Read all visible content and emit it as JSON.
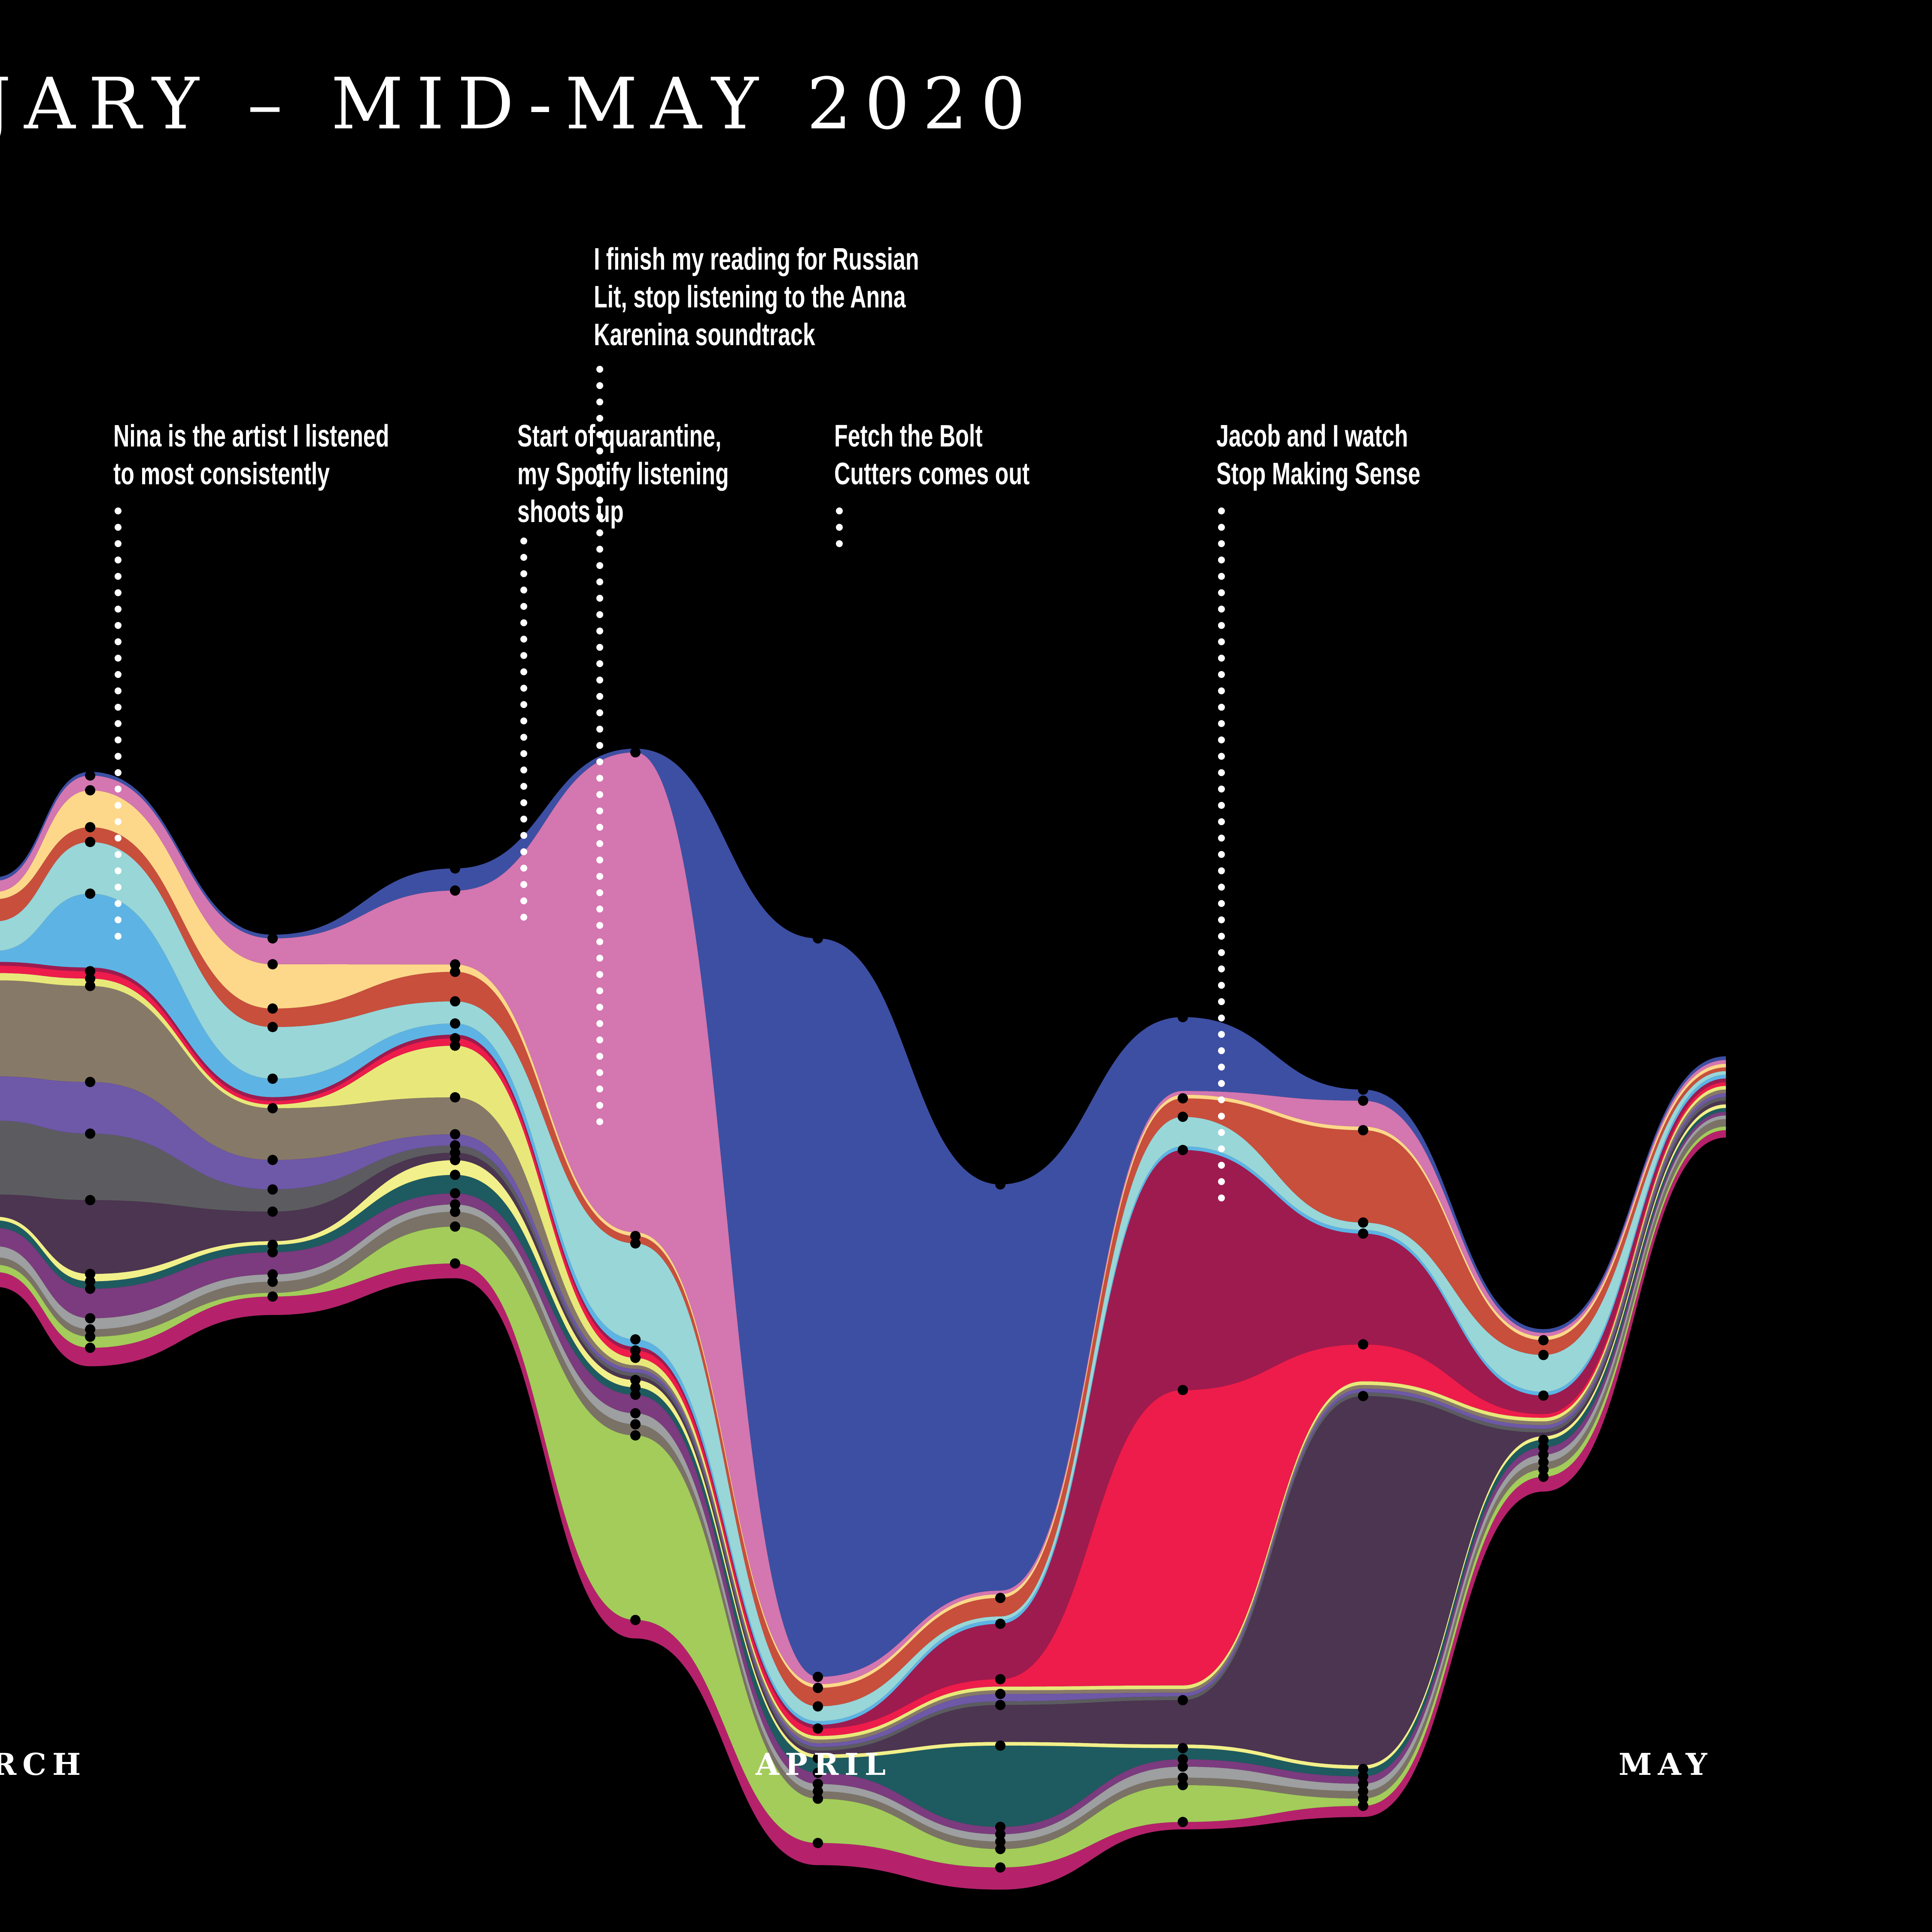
{
  "title": "JARY – MID-MAY 2020",
  "annotations": [
    {
      "text": "Nina is the artist I listened\nto most consistently"
    },
    {
      "text": "Start of quarantine,\nmy Spotify listening\nshoots up"
    },
    {
      "text": "I finish my reading for Russian\nLit, stop listening to the Anna\nKarenina soundtrack"
    },
    {
      "text": "Fetch the Bolt\nCutters comes out"
    },
    {
      "text": "Jacob and I watch\nStop Making Sense"
    }
  ],
  "months": [
    "RCH",
    "APRIL",
    "MAY"
  ],
  "chart_data": {
    "type": "area",
    "subtype": "streamgraph",
    "x": [
      "P0",
      "P1",
      "P2",
      "P3",
      "P4",
      "P5",
      "P6",
      "P7",
      "P8",
      "P9",
      "P10"
    ],
    "x_tick_labels": [
      "RCH",
      "APRIL",
      "MAY"
    ],
    "grid": false,
    "legend": "none",
    "series": [
      {
        "color": "#b5226b",
        "values": [
          4,
          5,
          5,
          4,
          5,
          6,
          6,
          2,
          3,
          4,
          2
        ]
      },
      {
        "color": "#a3cc5a",
        "values": [
          2,
          3,
          1,
          10,
          50,
          12,
          5,
          10,
          2,
          2,
          1
        ]
      },
      {
        "color": "#7a7266",
        "values": [
          2,
          2,
          3,
          4,
          3,
          2,
          2,
          2,
          2,
          2,
          2
        ]
      },
      {
        "color": "#9d9fa0",
        "values": [
          3,
          3,
          2,
          2,
          3,
          2,
          2,
          3,
          2,
          2,
          1
        ]
      },
      {
        "color": "#7b3b7e",
        "values": [
          5,
          8,
          6,
          3,
          5,
          3,
          2,
          2,
          2,
          2,
          1
        ]
      },
      {
        "color": "#1e5b60",
        "values": [
          2,
          2,
          2,
          5,
          2,
          4,
          22,
          3,
          2,
          2,
          1
        ]
      },
      {
        "color": "#f2f08a",
        "values": [
          1,
          2,
          1,
          4,
          2,
          1,
          1,
          1,
          1,
          1,
          1
        ]
      },
      {
        "color": "#4b3550",
        "values": [
          6,
          20,
          8,
          2,
          1,
          1,
          10,
          12,
          100,
          1,
          1
        ]
      },
      {
        "color": "#5c5c60",
        "values": [
          20,
          18,
          6,
          2,
          1,
          1,
          1,
          1,
          1,
          1,
          1
        ]
      },
      {
        "color": "#6e58a8",
        "values": [
          12,
          14,
          8,
          3,
          1,
          1,
          2,
          1,
          1,
          1,
          1
        ]
      },
      {
        "color": "#877968",
        "values": [
          26,
          26,
          14,
          10,
          1,
          1,
          1,
          1,
          1,
          1,
          1
        ]
      },
      {
        "color": "#e8e87a",
        "values": [
          2,
          2,
          1,
          14,
          2,
          1,
          1,
          1,
          1,
          1,
          1
        ]
      },
      {
        "color": "#ed1c4b",
        "values": [
          2,
          2,
          1,
          2,
          2,
          2,
          2,
          80,
          10,
          1,
          1
        ]
      },
      {
        "color": "#9e1b4f",
        "values": [
          1,
          1,
          1,
          1,
          1,
          1,
          15,
          65,
          30,
          5,
          1
        ]
      },
      {
        "color": "#5db4e4",
        "values": [
          3,
          20,
          5,
          3,
          2,
          1,
          1,
          1,
          1,
          1,
          1
        ]
      },
      {
        "color": "#99d6d8",
        "values": [
          8,
          14,
          14,
          6,
          26,
          4,
          1,
          8,
          2,
          10,
          1
        ]
      },
      {
        "color": "#c84f3c",
        "values": [
          6,
          4,
          5,
          8,
          2,
          5,
          5,
          5,
          25,
          4,
          1
        ]
      },
      {
        "color": "#fed88a",
        "values": [
          2,
          10,
          12,
          2,
          1,
          1,
          1,
          1,
          1,
          1,
          1
        ]
      },
      {
        "color": "#d476b0",
        "values": [
          3,
          4,
          7,
          20,
          130,
          2,
          1,
          1,
          7,
          1,
          1
        ]
      },
      {
        "color": "#3d4fa3",
        "values": [
          1,
          1,
          1,
          6,
          1,
          200,
          110,
          20,
          3,
          1,
          1
        ]
      }
    ]
  }
}
